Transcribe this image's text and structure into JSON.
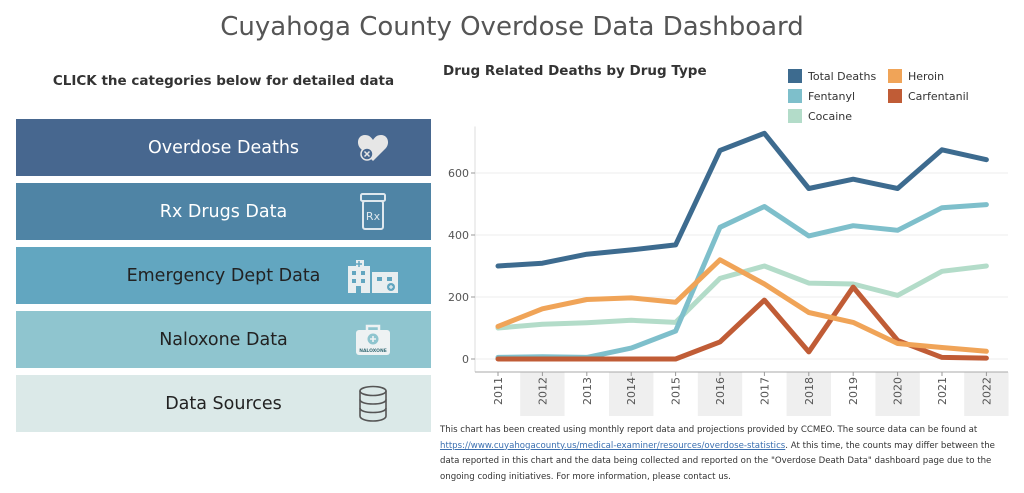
{
  "header": {
    "title": "Cuyahoga County Overdose Data Dashboard"
  },
  "sidebar": {
    "subhead": "CLICK the categories below for detailed data",
    "items": [
      {
        "label": "Overdose Deaths",
        "icon": "heart-icon",
        "bg": "#47678f",
        "fg": "#ffffff"
      },
      {
        "label": "Rx Drugs Data",
        "icon": "prescription-bottle-icon",
        "bg": "#4f84a5",
        "fg": "#ffffff"
      },
      {
        "label": "Emergency Dept Data",
        "icon": "hospital-building-icon",
        "bg": "#62a6c0",
        "fg": "#222222"
      },
      {
        "label": "Naloxone Data",
        "icon": "naloxone-kit-icon",
        "bg": "#8fc5cf",
        "fg": "#222222"
      },
      {
        "label": "Data Sources",
        "icon": "database-icon",
        "bg": "#dbe9e8",
        "fg": "#222222"
      }
    ]
  },
  "icon_text": {
    "rx": "Rx",
    "naloxone": "NALOXONE"
  },
  "note": {
    "text_before": "This chart has been created using monthly report data and projections provided by CCMEO.  The source data can be found at",
    "link": "https://www.cuyahogacounty.us/medical-examiner/resources/overdose-statistics",
    "text_after": ". At this time, the counts may differ between the data reported in this chart and the data being collected and reported on the \"Overdose Death Data\" dashboard page due to the ongoing coding initiatives. For more information, please contact us."
  },
  "chart_data": {
    "type": "line",
    "title": "Drug Related Deaths by Drug Type",
    "xlabel": "",
    "ylabel": "",
    "x": [
      "2011",
      "2012",
      "2013",
      "2014",
      "2015",
      "2016",
      "2017",
      "2018",
      "2019",
      "2020",
      "2021",
      "2022"
    ],
    "ylim": [
      -30,
      750
    ],
    "yticks": [
      0,
      200,
      400,
      600
    ],
    "ytick_labels": [
      "0",
      "200",
      "400",
      "600"
    ],
    "grid": true,
    "legend_position": "top-right",
    "series": [
      {
        "name": "Cocaine",
        "color": "#b3dcc9",
        "values": [
          100,
          112,
          117,
          125,
          118,
          260,
          300,
          245,
          242,
          205,
          283,
          300
        ]
      },
      {
        "name": "Fentanyl",
        "color": "#7ebfcb",
        "values": [
          5,
          7,
          5,
          35,
          90,
          425,
          492,
          397,
          430,
          415,
          488,
          498
        ]
      },
      {
        "name": "Carfentanil",
        "color": "#c05c36",
        "values": [
          0,
          0,
          0,
          0,
          0,
          55,
          190,
          23,
          232,
          60,
          5,
          3
        ]
      },
      {
        "name": "Heroin",
        "color": "#f0a458",
        "values": [
          105,
          162,
          192,
          197,
          183,
          320,
          242,
          150,
          118,
          50,
          37,
          25
        ]
      },
      {
        "name": "Total Deaths",
        "color": "#3d6b8f",
        "values": [
          300,
          309,
          338,
          352,
          368,
          673,
          728,
          550,
          580,
          550,
          675,
          643
        ]
      }
    ],
    "legend_order": [
      "Total Deaths",
      "Heroin",
      "Fentanyl",
      "Carfentanil",
      "Cocaine"
    ]
  }
}
